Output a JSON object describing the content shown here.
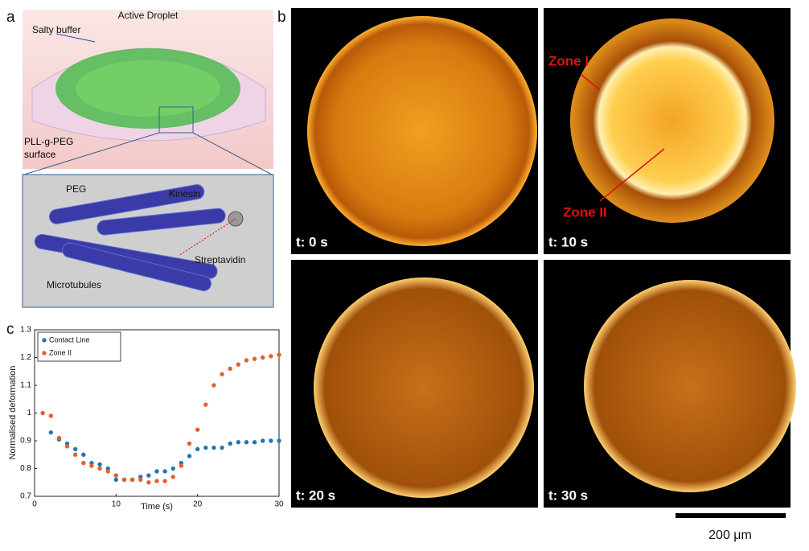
{
  "panel_a": {
    "label": "a",
    "title": "Active Droplet",
    "buffer": "Salty buffer",
    "surface": "PLL-g-PEG surface",
    "peg": "PEG",
    "kinesin": "Kinesin",
    "streptavidin": "Streptavidin",
    "microtubules": "Microtubules"
  },
  "panel_b": {
    "label": "b",
    "frames": [
      "t: 0 s",
      "t: 10 s",
      "t: 20 s",
      "t: 30 s"
    ],
    "zone_1": "Zone I",
    "zone_2": "Zone II",
    "scale_bar": "200 μm"
  },
  "panel_c": {
    "label": "c"
  },
  "chart_data": {
    "type": "scatter",
    "xlabel": "Time (s)",
    "ylabel": "Normalised deformation",
    "xlim": [
      0,
      30
    ],
    "ylim": [
      0.7,
      1.3
    ],
    "xticks": [
      0,
      10,
      20,
      30
    ],
    "yticks": [
      0.7,
      0.8,
      0.9,
      1,
      1.1,
      1.2,
      1.3
    ],
    "series": [
      {
        "name": "Contact Line",
        "color": "#1f77b4",
        "x": [
          2,
          3,
          4,
          5,
          6,
          7,
          8,
          9,
          10,
          11,
          12,
          13,
          14,
          15,
          16,
          17,
          18,
          19,
          20,
          21,
          22,
          23,
          24,
          25,
          26,
          27,
          28,
          29,
          30
        ],
        "values": [
          0.93,
          0.905,
          0.89,
          0.87,
          0.85,
          0.82,
          0.815,
          0.8,
          0.76,
          0.76,
          0.76,
          0.77,
          0.775,
          0.79,
          0.79,
          0.8,
          0.82,
          0.845,
          0.87,
          0.875,
          0.875,
          0.875,
          0.89,
          0.895,
          0.895,
          0.895,
          0.9,
          0.9,
          0.9
        ]
      },
      {
        "name": "Zone II",
        "color": "#e0622a",
        "x": [
          1,
          2,
          3,
          4,
          5,
          6,
          7,
          8,
          9,
          10,
          11,
          12,
          13,
          14,
          15,
          16,
          17,
          18,
          19,
          20,
          21,
          22,
          23,
          24,
          25,
          26,
          27,
          28,
          29,
          30
        ],
        "values": [
          1.0,
          0.99,
          0.91,
          0.88,
          0.85,
          0.82,
          0.81,
          0.8,
          0.79,
          0.775,
          0.76,
          0.76,
          0.76,
          0.75,
          0.755,
          0.755,
          0.77,
          0.81,
          0.89,
          0.94,
          1.03,
          1.1,
          1.14,
          1.16,
          1.175,
          1.19,
          1.195,
          1.2,
          1.205,
          1.21
        ]
      }
    ]
  }
}
